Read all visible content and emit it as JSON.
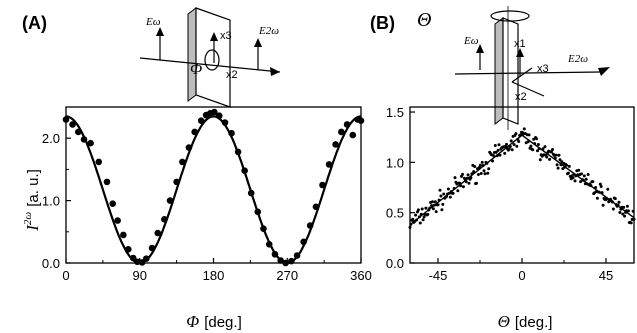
{
  "chart_data": [
    {
      "panel_label": "(A)",
      "type": "scatter",
      "xlabel_symbol": "Φ",
      "xlabel_unit": "[deg.]",
      "ylabel_symbol": "I",
      "ylabel_superscript": "2ω",
      "ylabel_unit": "[a. u.]",
      "xlim": [
        0,
        360
      ],
      "ylim": [
        0,
        2.5
      ],
      "xticks": [
        "0",
        "90",
        "180",
        "270",
        "360"
      ],
      "yticks": [
        "0.0",
        "1.0",
        "2.0"
      ],
      "fit_curve": {
        "form": "A*cos^2(x)",
        "amplitude": 2.35
      },
      "points": [
        [
          0,
          2.3
        ],
        [
          8,
          2.22
        ],
        [
          15,
          2.1
        ],
        [
          22,
          1.98
        ],
        [
          30,
          1.92
        ],
        [
          40,
          1.62
        ],
        [
          50,
          1.3
        ],
        [
          57,
          0.95
        ],
        [
          63,
          0.68
        ],
        [
          70,
          0.45
        ],
        [
          76,
          0.22
        ],
        [
          82,
          0.08
        ],
        [
          87,
          0.02
        ],
        [
          93,
          0.01
        ],
        [
          98,
          0.07
        ],
        [
          105,
          0.24
        ],
        [
          112,
          0.48
        ],
        [
          120,
          0.7
        ],
        [
          127,
          1.0
        ],
        [
          135,
          1.3
        ],
        [
          142,
          1.62
        ],
        [
          150,
          1.85
        ],
        [
          157,
          2.1
        ],
        [
          165,
          2.28
        ],
        [
          171,
          2.37
        ],
        [
          176,
          2.4
        ],
        [
          181,
          2.42
        ],
        [
          187,
          2.36
        ],
        [
          194,
          2.25
        ],
        [
          202,
          2.08
        ],
        [
          210,
          1.78
        ],
        [
          218,
          1.48
        ],
        [
          226,
          1.12
        ],
        [
          234,
          0.82
        ],
        [
          241,
          0.55
        ],
        [
          248,
          0.3
        ],
        [
          255,
          0.14
        ],
        [
          262,
          0.04
        ],
        [
          268,
          0.0
        ],
        [
          275,
          0.03
        ],
        [
          282,
          0.12
        ],
        [
          290,
          0.34
        ],
        [
          298,
          0.6
        ],
        [
          305,
          0.9
        ],
        [
          313,
          1.25
        ],
        [
          321,
          1.58
        ],
        [
          329,
          1.9
        ],
        [
          336,
          2.1
        ],
        [
          343,
          2.22
        ],
        [
          350,
          2.05
        ],
        [
          356,
          2.3
        ],
        [
          360,
          2.28
        ]
      ],
      "inset_labels": {
        "E_in": "Eω",
        "E_out": "E2ω",
        "axis3": "x3",
        "axis2": "x2",
        "angle": "Φ"
      }
    },
    {
      "panel_label": "(B)",
      "type": "scatter",
      "xlabel_symbol": "Θ",
      "xlabel_unit": "[deg.]",
      "xlim": [
        -60,
        60
      ],
      "ylim": [
        0,
        1.55
      ],
      "xticks": [
        "-45",
        "0",
        "45"
      ],
      "yticks": [
        "0.0",
        "0.5",
        "1.0",
        "1.5"
      ],
      "fit_curve": {
        "form": "piecewise-linear",
        "peak": 1.27,
        "left_end": [
          -60,
          0.38
        ],
        "right_end": [
          60,
          0.45
        ]
      },
      "point_spread": 0.05,
      "point_count": 240,
      "inset_labels": {
        "rotation": "Θ",
        "E_in": "Eω",
        "E_out": "E2ω",
        "axis1": "x1",
        "axis3": "x3",
        "axis2": "x2"
      }
    }
  ]
}
